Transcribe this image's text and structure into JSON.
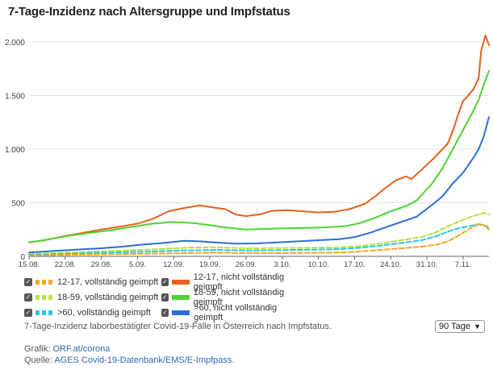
{
  "title": "7-Tage-Inzidenz nach Altersgruppe und Impfstatus",
  "footnote": "7-Tage-Inzidenz laborbestätigter Covid-19-Fälle in Österreich nach Impfstatus.",
  "range_select": {
    "value": "90 Tage"
  },
  "credits": {
    "grafik_label": "Grafik:",
    "grafik_link": "ORF.at/corona",
    "quelle_label": "Quelle:",
    "quelle_link": "AGES Covid-19-Datenbank/EMS/E-Impfpass."
  },
  "legend": [
    {
      "label": "12-17, vollständig geimpft",
      "color": "#f5a623",
      "dashed": true
    },
    {
      "label": "12-17, nicht vollständig geimpft",
      "color": "#e8601c",
      "dashed": false
    },
    {
      "label": "18-59, vollständig geimpft",
      "color": "#b7e23a",
      "dashed": true
    },
    {
      "label": "18-59, nicht vollständig geimpft",
      "color": "#4fd32e",
      "dashed": false
    },
    {
      "label": ">60, vollständig geimpft",
      "color": "#29c4f0",
      "dashed": true
    },
    {
      "label": ">60, nicht vollständig geimpft",
      "color": "#2b6fd6",
      "dashed": false
    }
  ],
  "chart_data": {
    "type": "line",
    "title": "7-Tage-Inzidenz nach Altersgruppe und Impfstatus",
    "xlabel": "",
    "ylabel": "",
    "ylim": [
      0,
      2150
    ],
    "y_ticks": [
      0,
      500,
      1000,
      1500,
      2000
    ],
    "y_tick_labels": [
      "0",
      "500",
      "1.000",
      "1.500",
      "2.000"
    ],
    "x_tick_labels": [
      "15.08.",
      "22.08.",
      "29.08.",
      "5.09.",
      "12.09.",
      "19.09.",
      "26.09.",
      "3.10.",
      "10.10.",
      "17.10.",
      "24.10.",
      "31.10.",
      "7.11."
    ],
    "x_tick_days": [
      0,
      7,
      14,
      21,
      28,
      35,
      42,
      49,
      56,
      63,
      70,
      77,
      84
    ],
    "x_range_days": [
      0,
      89
    ],
    "grid": "horizontal",
    "series": [
      {
        "name": "12-17, nicht vollständig geimpft",
        "color": "#e8601c",
        "dashed": false,
        "points": [
          [
            0,
            130
          ],
          [
            3,
            150
          ],
          [
            7,
            190
          ],
          [
            10,
            215
          ],
          [
            14,
            250
          ],
          [
            18,
            280
          ],
          [
            21,
            305
          ],
          [
            24,
            350
          ],
          [
            27,
            420
          ],
          [
            30,
            450
          ],
          [
            33,
            475
          ],
          [
            35,
            460
          ],
          [
            38,
            440
          ],
          [
            40,
            390
          ],
          [
            42,
            375
          ],
          [
            45,
            395
          ],
          [
            47,
            425
          ],
          [
            50,
            430
          ],
          [
            53,
            420
          ],
          [
            56,
            410
          ],
          [
            59,
            415
          ],
          [
            62,
            440
          ],
          [
            65,
            490
          ],
          [
            67,
            560
          ],
          [
            69,
            640
          ],
          [
            71,
            710
          ],
          [
            73,
            745
          ],
          [
            74,
            720
          ],
          [
            76,
            810
          ],
          [
            78,
            900
          ],
          [
            80,
            1000
          ],
          [
            81,
            1050
          ],
          [
            82,
            1170
          ],
          [
            83,
            1320
          ],
          [
            84,
            1450
          ],
          [
            85,
            1500
          ],
          [
            86,
            1560
          ],
          [
            87,
            1660
          ],
          [
            87.5,
            1920
          ],
          [
            88.3,
            2060
          ],
          [
            89,
            1970
          ]
        ]
      },
      {
        "name": "18-59, nicht vollständig geimpft",
        "color": "#4fd32e",
        "dashed": false,
        "points": [
          [
            0,
            130
          ],
          [
            4,
            160
          ],
          [
            8,
            195
          ],
          [
            12,
            220
          ],
          [
            16,
            245
          ],
          [
            20,
            275
          ],
          [
            24,
            305
          ],
          [
            28,
            320
          ],
          [
            32,
            310
          ],
          [
            35,
            290
          ],
          [
            38,
            270
          ],
          [
            42,
            250
          ],
          [
            45,
            255
          ],
          [
            49,
            260
          ],
          [
            53,
            265
          ],
          [
            57,
            270
          ],
          [
            61,
            280
          ],
          [
            64,
            310
          ],
          [
            67,
            360
          ],
          [
            70,
            420
          ],
          [
            73,
            470
          ],
          [
            75,
            520
          ],
          [
            78,
            680
          ],
          [
            80,
            820
          ],
          [
            82,
            1000
          ],
          [
            84,
            1180
          ],
          [
            86,
            1360
          ],
          [
            87,
            1460
          ],
          [
            88,
            1600
          ],
          [
            89,
            1730
          ]
        ]
      },
      {
        "name": ">60, nicht vollständig geimpft",
        "color": "#2b6fd6",
        "dashed": false,
        "points": [
          [
            0,
            35
          ],
          [
            5,
            50
          ],
          [
            10,
            65
          ],
          [
            14,
            75
          ],
          [
            18,
            90
          ],
          [
            22,
            110
          ],
          [
            26,
            125
          ],
          [
            30,
            145
          ],
          [
            33,
            140
          ],
          [
            36,
            130
          ],
          [
            40,
            118
          ],
          [
            44,
            120
          ],
          [
            48,
            130
          ],
          [
            52,
            140
          ],
          [
            56,
            150
          ],
          [
            60,
            160
          ],
          [
            63,
            180
          ],
          [
            66,
            220
          ],
          [
            69,
            270
          ],
          [
            72,
            320
          ],
          [
            75,
            370
          ],
          [
            78,
            480
          ],
          [
            80,
            560
          ],
          [
            82,
            680
          ],
          [
            84,
            780
          ],
          [
            86,
            920
          ],
          [
            87,
            1000
          ],
          [
            88,
            1120
          ],
          [
            89,
            1300
          ]
        ]
      },
      {
        "name": "18-59, vollständig geimpft",
        "color": "#b7e23a",
        "dashed": true,
        "points": [
          [
            0,
            20
          ],
          [
            8,
            35
          ],
          [
            16,
            50
          ],
          [
            24,
            65
          ],
          [
            30,
            80
          ],
          [
            36,
            85
          ],
          [
            42,
            75
          ],
          [
            48,
            78
          ],
          [
            54,
            80
          ],
          [
            60,
            85
          ],
          [
            64,
            95
          ],
          [
            68,
            120
          ],
          [
            72,
            150
          ],
          [
            76,
            180
          ],
          [
            79,
            230
          ],
          [
            81,
            280
          ],
          [
            83,
            320
          ],
          [
            85,
            360
          ],
          [
            87,
            390
          ],
          [
            88,
            405
          ],
          [
            89,
            390
          ]
        ]
      },
      {
        "name": ">60, vollständig geimpft",
        "color": "#29c4f0",
        "dashed": true,
        "points": [
          [
            0,
            15
          ],
          [
            8,
            25
          ],
          [
            16,
            35
          ],
          [
            24,
            45
          ],
          [
            30,
            55
          ],
          [
            36,
            60
          ],
          [
            42,
            55
          ],
          [
            48,
            58
          ],
          [
            54,
            62
          ],
          [
            60,
            68
          ],
          [
            64,
            80
          ],
          [
            68,
            100
          ],
          [
            72,
            125
          ],
          [
            76,
            150
          ],
          [
            79,
            190
          ],
          [
            81,
            230
          ],
          [
            83,
            260
          ],
          [
            85,
            280
          ],
          [
            87,
            300
          ],
          [
            88,
            290
          ],
          [
            89,
            270
          ]
        ]
      },
      {
        "name": "12-17, vollständig geimpft",
        "color": "#f5a623",
        "dashed": true,
        "points": [
          [
            0,
            10
          ],
          [
            8,
            15
          ],
          [
            16,
            20
          ],
          [
            24,
            25
          ],
          [
            30,
            30
          ],
          [
            36,
            35
          ],
          [
            42,
            30
          ],
          [
            48,
            30
          ],
          [
            54,
            32
          ],
          [
            60,
            35
          ],
          [
            64,
            45
          ],
          [
            68,
            60
          ],
          [
            72,
            75
          ],
          [
            76,
            90
          ],
          [
            79,
            110
          ],
          [
            81,
            140
          ],
          [
            83,
            190
          ],
          [
            85,
            250
          ],
          [
            87,
            300
          ],
          [
            88,
            290
          ],
          [
            89,
            250
          ]
        ]
      }
    ]
  }
}
